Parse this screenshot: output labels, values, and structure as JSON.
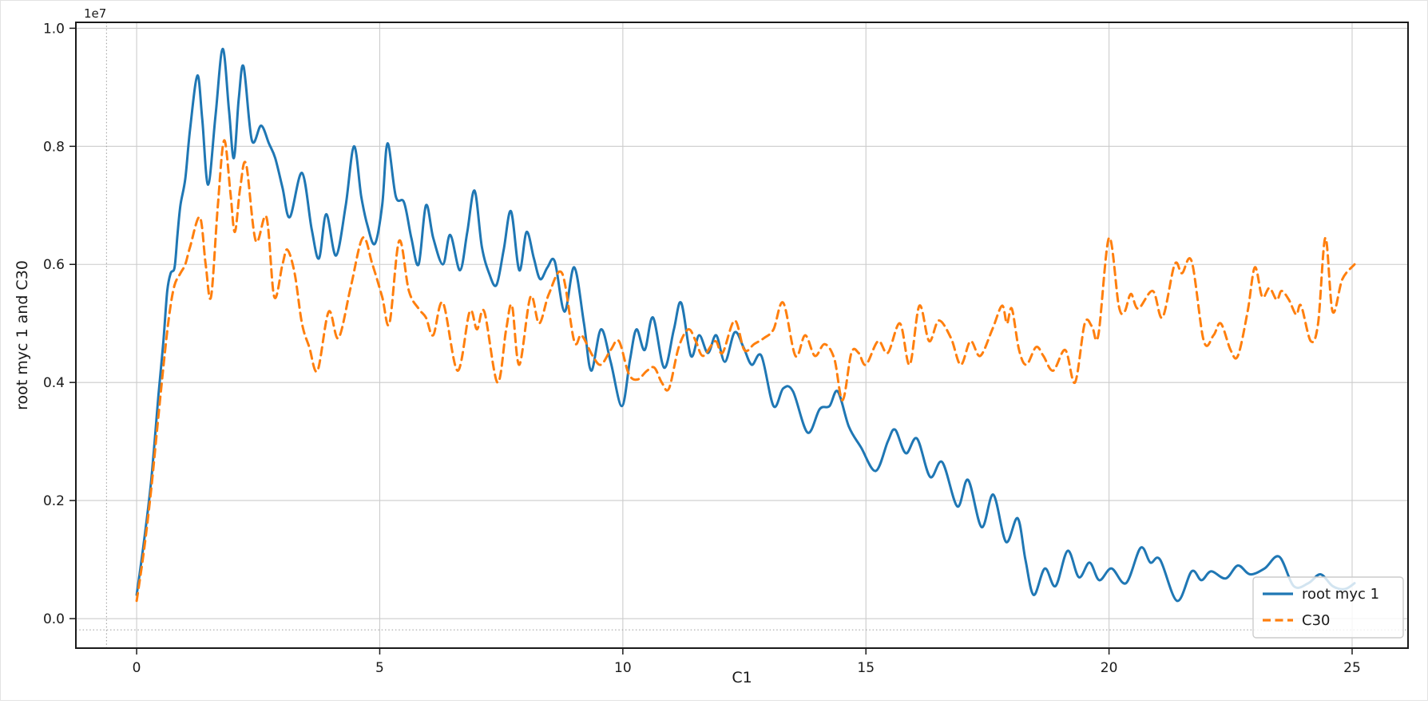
{
  "figure": {
    "background": "#ffffff",
    "frame_color": "#1a1a1a",
    "grid_color": "#cccccc"
  },
  "chart_data": {
    "type": "line",
    "title": "",
    "xlabel": "C1",
    "ylabel": "root myc 1 and C30",
    "y_offset_text": "1e7",
    "y_values_unit": "1e7",
    "xlim": [
      -1.25,
      26.15
    ],
    "ylim": [
      -0.05,
      1.01
    ],
    "xticks": [
      0,
      5,
      10,
      15,
      20,
      25
    ],
    "yticks": [
      0.0,
      0.2,
      0.4,
      0.6,
      0.8,
      1.0
    ],
    "grid": true,
    "dotted_ref_lines": {
      "x": -0.62,
      "y": -0.019,
      "color": "#9a9a9a"
    },
    "legend_position": "lower right",
    "series": [
      {
        "name": "root myc 1",
        "color": "#1f77b4",
        "style": "solid",
        "points": [
          [
            0.0,
            0.04
          ],
          [
            0.15,
            0.13
          ],
          [
            0.3,
            0.235
          ],
          [
            0.45,
            0.38
          ],
          [
            0.55,
            0.47
          ],
          [
            0.63,
            0.555
          ],
          [
            0.7,
            0.585
          ],
          [
            0.78,
            0.595
          ],
          [
            0.84,
            0.65
          ],
          [
            0.9,
            0.7
          ],
          [
            1.0,
            0.745
          ],
          [
            1.1,
            0.83
          ],
          [
            1.25,
            0.92
          ],
          [
            1.35,
            0.845
          ],
          [
            1.47,
            0.735
          ],
          [
            1.62,
            0.85
          ],
          [
            1.77,
            0.965
          ],
          [
            1.9,
            0.86
          ],
          [
            2.0,
            0.78
          ],
          [
            2.1,
            0.88
          ],
          [
            2.2,
            0.935
          ],
          [
            2.37,
            0.81
          ],
          [
            2.56,
            0.835
          ],
          [
            2.72,
            0.805
          ],
          [
            2.85,
            0.78
          ],
          [
            3.0,
            0.73
          ],
          [
            3.15,
            0.68
          ],
          [
            3.4,
            0.755
          ],
          [
            3.6,
            0.66
          ],
          [
            3.75,
            0.61
          ],
          [
            3.9,
            0.685
          ],
          [
            4.1,
            0.615
          ],
          [
            4.3,
            0.7
          ],
          [
            4.47,
            0.8
          ],
          [
            4.62,
            0.715
          ],
          [
            4.75,
            0.665
          ],
          [
            4.9,
            0.635
          ],
          [
            5.05,
            0.7
          ],
          [
            5.16,
            0.805
          ],
          [
            5.33,
            0.715
          ],
          [
            5.5,
            0.705
          ],
          [
            5.65,
            0.645
          ],
          [
            5.8,
            0.6
          ],
          [
            5.95,
            0.7
          ],
          [
            6.1,
            0.645
          ],
          [
            6.3,
            0.6
          ],
          [
            6.45,
            0.65
          ],
          [
            6.65,
            0.59
          ],
          [
            6.8,
            0.655
          ],
          [
            6.95,
            0.725
          ],
          [
            7.1,
            0.63
          ],
          [
            7.25,
            0.585
          ],
          [
            7.4,
            0.565
          ],
          [
            7.55,
            0.625
          ],
          [
            7.7,
            0.69
          ],
          [
            7.87,
            0.59
          ],
          [
            8.02,
            0.655
          ],
          [
            8.17,
            0.61
          ],
          [
            8.3,
            0.575
          ],
          [
            8.45,
            0.595
          ],
          [
            8.6,
            0.605
          ],
          [
            8.8,
            0.52
          ],
          [
            9.0,
            0.595
          ],
          [
            9.2,
            0.5
          ],
          [
            9.35,
            0.42
          ],
          [
            9.55,
            0.49
          ],
          [
            9.75,
            0.435
          ],
          [
            9.98,
            0.36
          ],
          [
            10.15,
            0.44
          ],
          [
            10.28,
            0.49
          ],
          [
            10.45,
            0.455
          ],
          [
            10.62,
            0.51
          ],
          [
            10.85,
            0.425
          ],
          [
            11.05,
            0.49
          ],
          [
            11.2,
            0.535
          ],
          [
            11.4,
            0.445
          ],
          [
            11.57,
            0.48
          ],
          [
            11.75,
            0.45
          ],
          [
            11.92,
            0.48
          ],
          [
            12.1,
            0.435
          ],
          [
            12.3,
            0.485
          ],
          [
            12.48,
            0.46
          ],
          [
            12.65,
            0.43
          ],
          [
            12.85,
            0.445
          ],
          [
            13.1,
            0.36
          ],
          [
            13.3,
            0.39
          ],
          [
            13.5,
            0.385
          ],
          [
            13.8,
            0.315
          ],
          [
            14.05,
            0.355
          ],
          [
            14.25,
            0.36
          ],
          [
            14.42,
            0.385
          ],
          [
            14.65,
            0.325
          ],
          [
            14.9,
            0.29
          ],
          [
            15.2,
            0.25
          ],
          [
            15.45,
            0.3
          ],
          [
            15.6,
            0.32
          ],
          [
            15.82,
            0.28
          ],
          [
            16.05,
            0.305
          ],
          [
            16.32,
            0.24
          ],
          [
            16.57,
            0.265
          ],
          [
            16.88,
            0.19
          ],
          [
            17.1,
            0.235
          ],
          [
            17.38,
            0.155
          ],
          [
            17.62,
            0.21
          ],
          [
            17.88,
            0.13
          ],
          [
            18.12,
            0.17
          ],
          [
            18.28,
            0.1
          ],
          [
            18.45,
            0.04
          ],
          [
            18.68,
            0.085
          ],
          [
            18.9,
            0.055
          ],
          [
            19.15,
            0.115
          ],
          [
            19.38,
            0.07
          ],
          [
            19.6,
            0.095
          ],
          [
            19.8,
            0.065
          ],
          [
            20.05,
            0.085
          ],
          [
            20.35,
            0.06
          ],
          [
            20.65,
            0.12
          ],
          [
            20.85,
            0.095
          ],
          [
            21.05,
            0.1
          ],
          [
            21.4,
            0.03
          ],
          [
            21.7,
            0.08
          ],
          [
            21.9,
            0.065
          ],
          [
            22.1,
            0.08
          ],
          [
            22.4,
            0.068
          ],
          [
            22.65,
            0.09
          ],
          [
            22.9,
            0.075
          ],
          [
            23.2,
            0.085
          ],
          [
            23.5,
            0.105
          ],
          [
            23.8,
            0.055
          ],
          [
            24.1,
            0.06
          ],
          [
            24.35,
            0.075
          ],
          [
            24.6,
            0.055
          ],
          [
            24.85,
            0.05
          ],
          [
            25.05,
            0.06
          ]
        ]
      },
      {
        "name": "C30",
        "color": "#ff7f0e",
        "style": "dashed",
        "points": [
          [
            0.0,
            0.03
          ],
          [
            0.15,
            0.115
          ],
          [
            0.3,
            0.22
          ],
          [
            0.45,
            0.345
          ],
          [
            0.58,
            0.45
          ],
          [
            0.68,
            0.52
          ],
          [
            0.78,
            0.565
          ],
          [
            0.9,
            0.585
          ],
          [
            1.0,
            0.6
          ],
          [
            1.1,
            0.63
          ],
          [
            1.3,
            0.68
          ],
          [
            1.42,
            0.6
          ],
          [
            1.53,
            0.545
          ],
          [
            1.67,
            0.7
          ],
          [
            1.8,
            0.81
          ],
          [
            1.93,
            0.72
          ],
          [
            2.02,
            0.655
          ],
          [
            2.13,
            0.73
          ],
          [
            2.25,
            0.77
          ],
          [
            2.45,
            0.64
          ],
          [
            2.67,
            0.68
          ],
          [
            2.83,
            0.545
          ],
          [
            3.0,
            0.6
          ],
          [
            3.1,
            0.625
          ],
          [
            3.25,
            0.585
          ],
          [
            3.4,
            0.5
          ],
          [
            3.55,
            0.46
          ],
          [
            3.72,
            0.42
          ],
          [
            3.95,
            0.52
          ],
          [
            4.15,
            0.475
          ],
          [
            4.4,
            0.56
          ],
          [
            4.65,
            0.645
          ],
          [
            4.85,
            0.6
          ],
          [
            5.05,
            0.545
          ],
          [
            5.2,
            0.5
          ],
          [
            5.4,
            0.64
          ],
          [
            5.6,
            0.555
          ],
          [
            5.8,
            0.525
          ],
          [
            5.95,
            0.51
          ],
          [
            6.1,
            0.48
          ],
          [
            6.3,
            0.535
          ],
          [
            6.6,
            0.42
          ],
          [
            6.85,
            0.52
          ],
          [
            7.0,
            0.49
          ],
          [
            7.15,
            0.52
          ],
          [
            7.42,
            0.4
          ],
          [
            7.6,
            0.49
          ],
          [
            7.72,
            0.53
          ],
          [
            7.87,
            0.43
          ],
          [
            8.1,
            0.545
          ],
          [
            8.28,
            0.5
          ],
          [
            8.48,
            0.55
          ],
          [
            8.75,
            0.585
          ],
          [
            9.0,
            0.47
          ],
          [
            9.15,
            0.48
          ],
          [
            9.38,
            0.445
          ],
          [
            9.55,
            0.43
          ],
          [
            9.75,
            0.455
          ],
          [
            9.92,
            0.47
          ],
          [
            10.12,
            0.415
          ],
          [
            10.3,
            0.405
          ],
          [
            10.5,
            0.42
          ],
          [
            10.65,
            0.425
          ],
          [
            10.8,
            0.4
          ],
          [
            10.95,
            0.39
          ],
          [
            11.15,
            0.46
          ],
          [
            11.35,
            0.49
          ],
          [
            11.5,
            0.47
          ],
          [
            11.65,
            0.445
          ],
          [
            11.9,
            0.47
          ],
          [
            12.05,
            0.45
          ],
          [
            12.3,
            0.505
          ],
          [
            12.5,
            0.455
          ],
          [
            12.7,
            0.465
          ],
          [
            12.9,
            0.475
          ],
          [
            13.1,
            0.49
          ],
          [
            13.3,
            0.535
          ],
          [
            13.55,
            0.445
          ],
          [
            13.75,
            0.48
          ],
          [
            13.95,
            0.445
          ],
          [
            14.15,
            0.465
          ],
          [
            14.35,
            0.44
          ],
          [
            14.52,
            0.37
          ],
          [
            14.7,
            0.45
          ],
          [
            14.85,
            0.45
          ],
          [
            15.0,
            0.43
          ],
          [
            15.25,
            0.47
          ],
          [
            15.45,
            0.45
          ],
          [
            15.7,
            0.5
          ],
          [
            15.9,
            0.43
          ],
          [
            16.1,
            0.53
          ],
          [
            16.3,
            0.47
          ],
          [
            16.5,
            0.505
          ],
          [
            16.75,
            0.475
          ],
          [
            16.95,
            0.43
          ],
          [
            17.15,
            0.47
          ],
          [
            17.35,
            0.445
          ],
          [
            17.6,
            0.49
          ],
          [
            17.8,
            0.53
          ],
          [
            17.9,
            0.5
          ],
          [
            18.0,
            0.525
          ],
          [
            18.15,
            0.455
          ],
          [
            18.3,
            0.43
          ],
          [
            18.5,
            0.46
          ],
          [
            18.65,
            0.445
          ],
          [
            18.85,
            0.42
          ],
          [
            19.1,
            0.455
          ],
          [
            19.3,
            0.4
          ],
          [
            19.5,
            0.5
          ],
          [
            19.65,
            0.495
          ],
          [
            19.78,
            0.48
          ],
          [
            20.0,
            0.645
          ],
          [
            20.2,
            0.53
          ],
          [
            20.32,
            0.52
          ],
          [
            20.45,
            0.55
          ],
          [
            20.6,
            0.525
          ],
          [
            20.9,
            0.555
          ],
          [
            21.1,
            0.51
          ],
          [
            21.35,
            0.6
          ],
          [
            21.5,
            0.585
          ],
          [
            21.7,
            0.605
          ],
          [
            21.95,
            0.47
          ],
          [
            22.15,
            0.48
          ],
          [
            22.3,
            0.5
          ],
          [
            22.5,
            0.455
          ],
          [
            22.65,
            0.445
          ],
          [
            22.85,
            0.52
          ],
          [
            23.0,
            0.595
          ],
          [
            23.15,
            0.545
          ],
          [
            23.3,
            0.56
          ],
          [
            23.45,
            0.54
          ],
          [
            23.55,
            0.555
          ],
          [
            23.7,
            0.54
          ],
          [
            23.85,
            0.515
          ],
          [
            23.95,
            0.53
          ],
          [
            24.15,
            0.47
          ],
          [
            24.3,
            0.5
          ],
          [
            24.45,
            0.645
          ],
          [
            24.6,
            0.52
          ],
          [
            24.8,
            0.575
          ],
          [
            25.05,
            0.6
          ]
        ]
      }
    ]
  }
}
